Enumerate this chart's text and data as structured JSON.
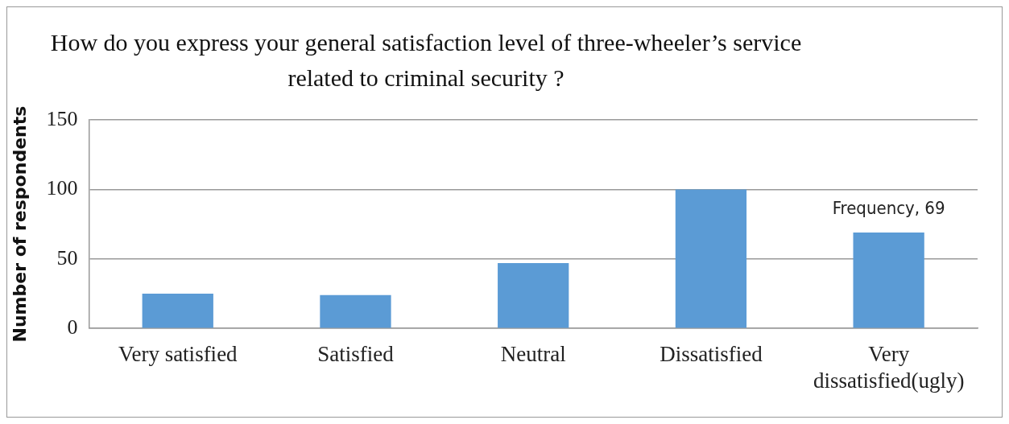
{
  "chart_data": {
    "type": "bar",
    "title": "How do you express your general satisfaction level of three-wheeler’s service related to criminal security ?",
    "ylabel": "Number of respondents",
    "categories": [
      "Very satisfied",
      "Satisfied",
      "Neutral",
      "Dissatisfied",
      "Very dissatisfied(ugly)"
    ],
    "values": [
      25,
      24,
      47,
      100,
      69
    ],
    "value_labels": [
      null,
      null,
      null,
      null,
      "Frequency, 69"
    ],
    "color": "#5b9bd5",
    "ylim": [
      0,
      150
    ],
    "yticks": [
      0,
      50,
      100,
      150
    ],
    "grid": "y",
    "legend": false
  }
}
